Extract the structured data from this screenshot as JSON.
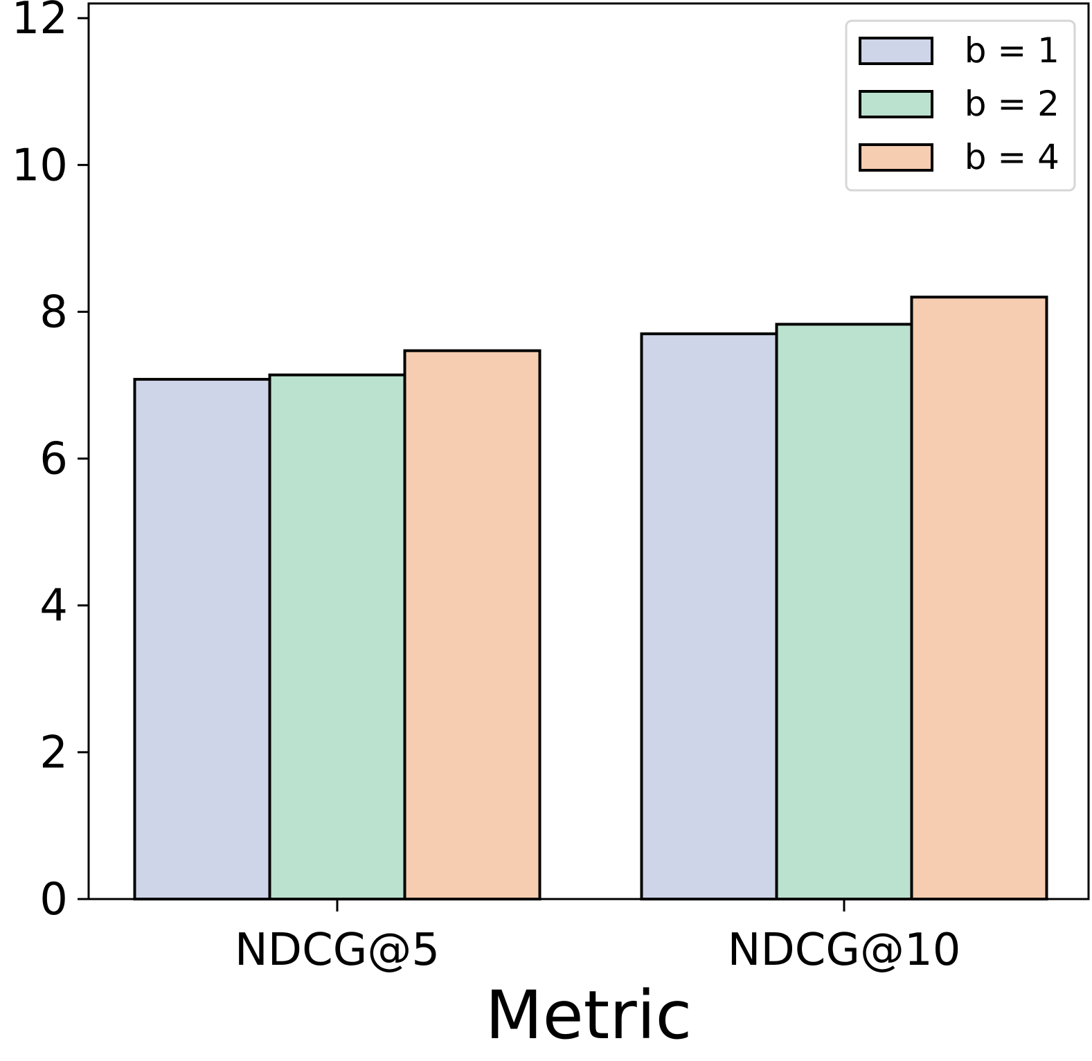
{
  "chart_data": {
    "type": "bar",
    "categories": [
      "NDCG@5",
      "NDCG@10"
    ],
    "series": [
      {
        "name": "b = 1",
        "values": [
          7.08,
          7.7
        ],
        "color": "#cfd5e8"
      },
      {
        "name": "b = 2",
        "values": [
          7.14,
          7.83
        ],
        "color": "#bbe1cf"
      },
      {
        "name": "b = 4",
        "values": [
          7.47,
          8.2
        ],
        "color": "#f6cdb0"
      }
    ],
    "title": "",
    "xlabel": "Metric",
    "ylabel": "",
    "ylim": [
      0,
      12.2
    ],
    "yticks": [
      "0",
      "2",
      "4",
      "6",
      "8",
      "10",
      "12"
    ],
    "grid": false,
    "legend_position": "top-right",
    "edge_color": "#000000"
  }
}
